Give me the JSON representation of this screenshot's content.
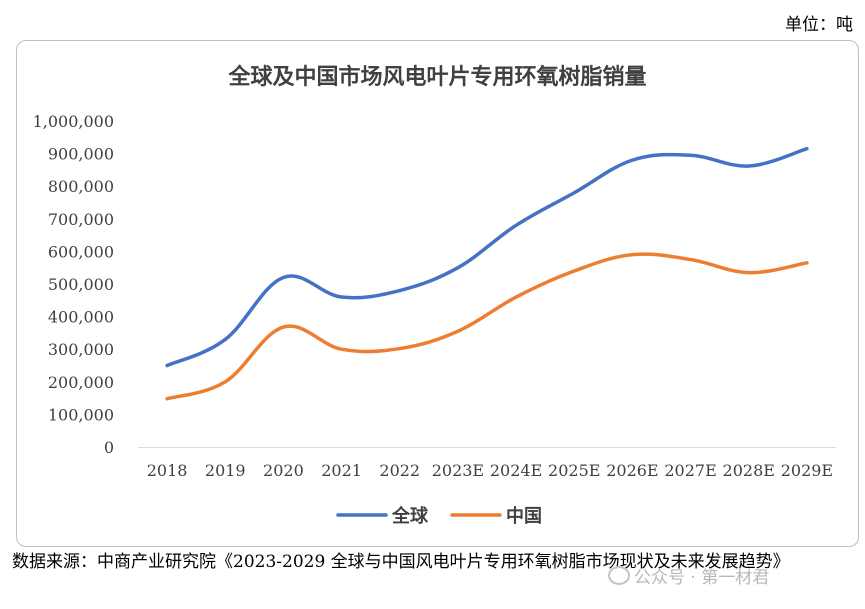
{
  "unit_label": "单位：吨",
  "chart_data": {
    "type": "line",
    "title": "全球及中国市场风电叶片专用环氧树脂销量",
    "categories": [
      "2018",
      "2019",
      "2020",
      "2021",
      "2022",
      "2023E",
      "2024E",
      "2025E",
      "2026E",
      "2027E",
      "2028E",
      "2029E"
    ],
    "ylim": [
      0,
      1000000
    ],
    "yticks": [
      "0",
      "100,000",
      "200,000",
      "300,000",
      "400,000",
      "500,000",
      "600,000",
      "700,000",
      "800,000",
      "900,000",
      "1,000,000"
    ],
    "grid": false,
    "legend_position": "bottom",
    "series": [
      {
        "name": "全球",
        "color": "#4472C4",
        "values": [
          250000,
          330000,
          520000,
          460000,
          480000,
          550000,
          680000,
          780000,
          880000,
          895000,
          862000,
          915000
        ]
      },
      {
        "name": "中国",
        "color": "#ED7D31",
        "values": [
          148000,
          200000,
          368000,
          300000,
          302000,
          355000,
          460000,
          540000,
          590000,
          575000,
          535000,
          565000
        ]
      }
    ]
  },
  "source_text": "数据来源：中商产业研究院《2023-2029 全球与中国风电叶片专用环氧树脂市场现状及未来发展趋势》",
  "watermark": "公众号 · 第一材君"
}
